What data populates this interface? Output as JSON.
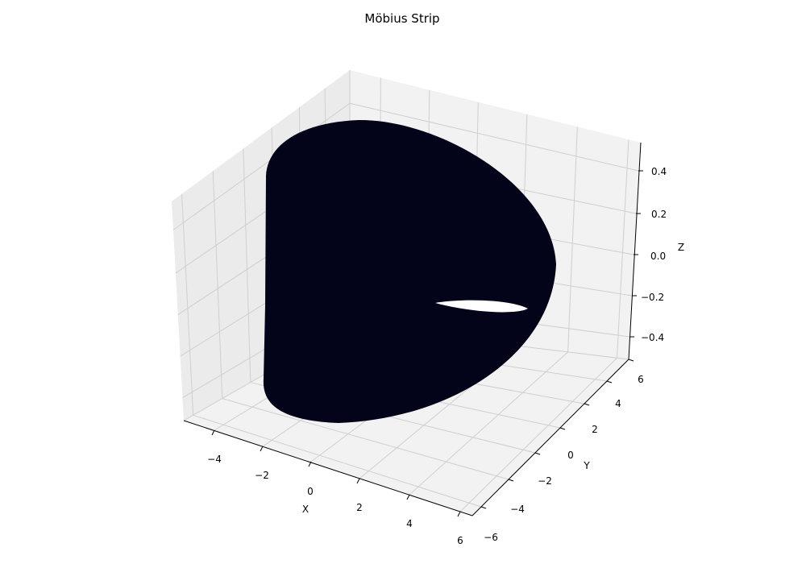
{
  "chart_data": {
    "type": "surface3d",
    "title": "Möbius Strip",
    "xlabel": "X",
    "ylabel": "Y",
    "zlabel": "Z",
    "xlim": [
      -5.5,
      6
    ],
    "ylim": [
      -6,
      6
    ],
    "zlim": [
      -0.5,
      0.5
    ],
    "x_ticks": [
      "−4",
      "−2",
      "0",
      "2",
      "4",
      "6"
    ],
    "y_ticks": [
      "−6",
      "−4",
      "−2",
      "0",
      "2",
      "4",
      "6"
    ],
    "z_ticks": [
      "−0.4",
      "−0.2",
      "0.0",
      "0.2",
      "0.4"
    ],
    "grid": true,
    "surface_color": "#03031a",
    "pane_color": "#f2f2f2",
    "pane_color_side": "#ebebeb",
    "grid_color": "#cfcfcf",
    "axis_line_color": "#000000"
  }
}
